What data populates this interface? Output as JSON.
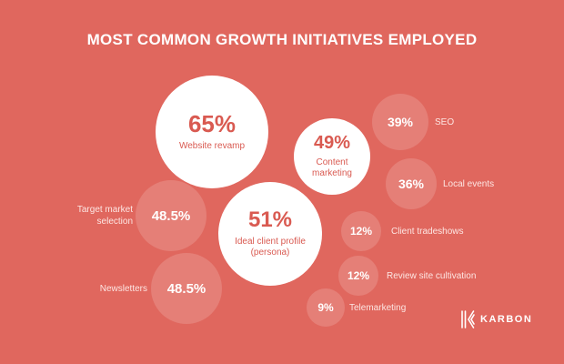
{
  "chart_data": {
    "type": "bubble",
    "title": "MOST COMMON GROWTH INITIATIVES EMPLOYED",
    "unit": "%",
    "items": [
      {
        "key": "website",
        "label": "Website revamp",
        "value": 65,
        "display": "65%"
      },
      {
        "key": "icp",
        "label": "Ideal client profile (persona)",
        "value": 51,
        "display": "51%"
      },
      {
        "key": "content",
        "label": "Content marketing",
        "value": 49,
        "display": "49%"
      },
      {
        "key": "target",
        "label": "Target market selection",
        "value": 48.5,
        "display": "48.5%"
      },
      {
        "key": "newsletters",
        "label": "Newsletters",
        "value": 48.5,
        "display": "48.5%"
      },
      {
        "key": "seo",
        "label": "SEO",
        "value": 39,
        "display": "39%"
      },
      {
        "key": "local",
        "label": "Local events",
        "value": 36,
        "display": "36%"
      },
      {
        "key": "tradeshows",
        "label": "Client tradeshows",
        "value": 12,
        "display": "12%"
      },
      {
        "key": "review",
        "label": "Review site cultivation",
        "value": 12,
        "display": "12%"
      },
      {
        "key": "tele",
        "label": "Telemarketing",
        "value": 9,
        "display": "9%"
      }
    ]
  },
  "brand": {
    "name": "KARBON",
    "logo_icon": "karbon-logo-icon"
  },
  "colors": {
    "background": "#e0675e",
    "bubble_major": "#ffffff",
    "text_major": "#d95a51"
  }
}
